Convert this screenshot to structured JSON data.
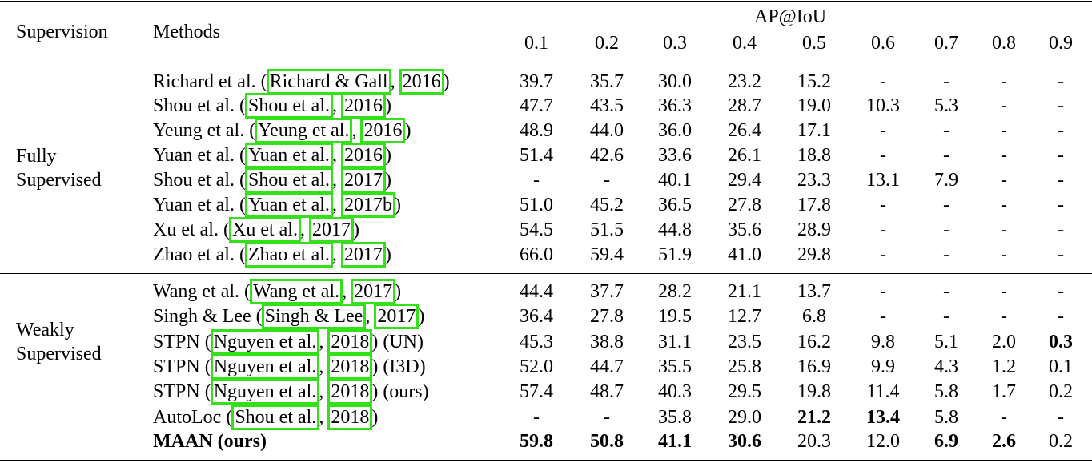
{
  "header": {
    "supervision": "Supervision",
    "methods": "Methods",
    "metric": "AP@IoU",
    "thresholds": [
      "0.1",
      "0.2",
      "0.3",
      "0.4",
      "0.5",
      "0.6",
      "0.7",
      "0.8",
      "0.9"
    ]
  },
  "groups": [
    {
      "label_lines": [
        "Fully",
        "Supervised"
      ],
      "rows": [
        {
          "name": "Richard et al.",
          "cites": [
            "Richard & Gall",
            "2016"
          ],
          "suffix": "",
          "values": [
            "39.7",
            "35.7",
            "30.0",
            "23.2",
            "15.2",
            "-",
            "-",
            "-",
            "-"
          ],
          "bold": []
        },
        {
          "name": "Shou et al.",
          "cites": [
            "Shou et al.",
            "2016"
          ],
          "suffix": "",
          "values": [
            "47.7",
            "43.5",
            "36.3",
            "28.7",
            "19.0",
            "10.3",
            "5.3",
            "-",
            "-"
          ],
          "bold": []
        },
        {
          "name": "Yeung et al.",
          "cites": [
            "Yeung et al.",
            "2016"
          ],
          "suffix": "",
          "values": [
            "48.9",
            "44.0",
            "36.0",
            "26.4",
            "17.1",
            "-",
            "-",
            "-",
            "-"
          ],
          "bold": []
        },
        {
          "name": "Yuan et al.",
          "cites": [
            "Yuan et al.",
            "2016"
          ],
          "suffix": "",
          "values": [
            "51.4",
            "42.6",
            "33.6",
            "26.1",
            "18.8",
            "-",
            "-",
            "-",
            "-"
          ],
          "bold": []
        },
        {
          "name": "Shou et al.",
          "cites": [
            "Shou et al.",
            "2017"
          ],
          "suffix": "",
          "values": [
            "-",
            "-",
            "40.1",
            "29.4",
            "23.3",
            "13.1",
            "7.9",
            "-",
            "-"
          ],
          "bold": []
        },
        {
          "name": "Yuan et al.",
          "cites": [
            "Yuan et al.",
            "2017b"
          ],
          "suffix": "",
          "values": [
            "51.0",
            "45.2",
            "36.5",
            "27.8",
            "17.8",
            "-",
            "-",
            "-",
            "-"
          ],
          "bold": []
        },
        {
          "name": "Xu et al.",
          "cites": [
            "Xu et al.",
            "2017"
          ],
          "suffix": "",
          "values": [
            "54.5",
            "51.5",
            "44.8",
            "35.6",
            "28.9",
            "-",
            "-",
            "-",
            "-"
          ],
          "bold": []
        },
        {
          "name": "Zhao et al.",
          "cites": [
            "Zhao et al.",
            "2017"
          ],
          "suffix": "",
          "values": [
            "66.0",
            "59.4",
            "51.9",
            "41.0",
            "29.8",
            "-",
            "-",
            "-",
            "-"
          ],
          "bold": []
        }
      ]
    },
    {
      "label_lines": [
        "Weakly",
        "Supervised"
      ],
      "rows": [
        {
          "name": "Wang et al.",
          "cites": [
            "Wang et al.",
            "2017"
          ],
          "suffix": "",
          "values": [
            "44.4",
            "37.7",
            "28.2",
            "21.1",
            "13.7",
            "-",
            "-",
            "-",
            "-"
          ],
          "bold": []
        },
        {
          "name": "Singh & Lee",
          "cites": [
            "Singh & Lee",
            "2017"
          ],
          "suffix": "",
          "values": [
            "36.4",
            "27.8",
            "19.5",
            "12.7",
            "6.8",
            "-",
            "-",
            "-",
            "-"
          ],
          "bold": []
        },
        {
          "name": "STPN",
          "cites": [
            "Nguyen et al.",
            "2018"
          ],
          "suffix": " (UN)",
          "values": [
            "45.3",
            "38.8",
            "31.1",
            "23.5",
            "16.2",
            "9.8",
            "5.1",
            "2.0",
            "0.3"
          ],
          "bold": [
            8
          ]
        },
        {
          "name": "STPN",
          "cites": [
            "Nguyen et al.",
            "2018"
          ],
          "suffix": " (I3D)",
          "values": [
            "52.0",
            "44.7",
            "35.5",
            "25.8",
            "16.9",
            "9.9",
            "4.3",
            "1.2",
            "0.1"
          ],
          "bold": []
        },
        {
          "name": "STPN",
          "cites": [
            "Nguyen et al.",
            "2018"
          ],
          "suffix": " (ours)",
          "values": [
            "57.4",
            "48.7",
            "40.3",
            "29.5",
            "19.8",
            "11.4",
            "5.8",
            "1.7",
            "0.2"
          ],
          "bold": []
        },
        {
          "name": "AutoLoc",
          "cites": [
            "Shou et al.",
            "2018"
          ],
          "suffix": "",
          "values": [
            "-",
            "-",
            "35.8",
            "29.0",
            "21.2",
            "13.4",
            "5.8",
            "-",
            "-"
          ],
          "bold": [
            4,
            5
          ]
        },
        {
          "name": "MAAN (ours)",
          "cites": [],
          "suffix": "",
          "name_bold": true,
          "values": [
            "59.8",
            "50.8",
            "41.1",
            "30.6",
            "20.3",
            "12.0",
            "6.9",
            "2.6",
            "0.2"
          ],
          "bold": [
            0,
            1,
            2,
            3,
            6,
            7
          ]
        }
      ]
    }
  ]
}
